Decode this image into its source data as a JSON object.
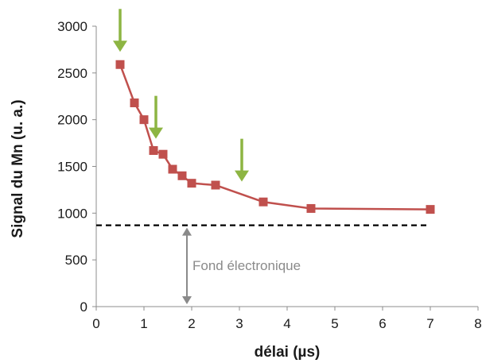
{
  "chart_data": {
    "type": "line",
    "xlabel": "délai (µs)",
    "ylabel": "Signal du Mn (u. a.)",
    "xlim": [
      0,
      8
    ],
    "ylim": [
      0,
      3000
    ],
    "x_ticks": [
      0,
      1,
      2,
      3,
      4,
      5,
      6,
      7,
      8
    ],
    "y_ticks": [
      0,
      500,
      1000,
      1500,
      2000,
      2500,
      3000
    ],
    "grid": false,
    "series": [
      {
        "x": [
          0.5,
          0.8,
          1.0,
          1.2,
          1.4,
          1.6,
          1.8,
          2.0,
          2.5,
          3.5,
          4.5,
          7.0
        ],
        "y": [
          2590,
          2180,
          2000,
          1670,
          1630,
          1470,
          1400,
          1320,
          1300,
          1120,
          1050,
          1040
        ],
        "color": "#c0504d",
        "marker": "square"
      }
    ],
    "reference_line": {
      "y": 870,
      "x_range": [
        0,
        7
      ],
      "style": "dashed",
      "color": "#000000"
    },
    "annotations": [
      {
        "text": "Fond électronique",
        "arrow_x": 1.9,
        "arrow_y_range": [
          0,
          870
        ],
        "color": "#8a8a8a"
      }
    ],
    "highlight_arrows": {
      "color": "#8db543",
      "x": [
        0.5,
        1.25,
        3.05
      ]
    }
  }
}
